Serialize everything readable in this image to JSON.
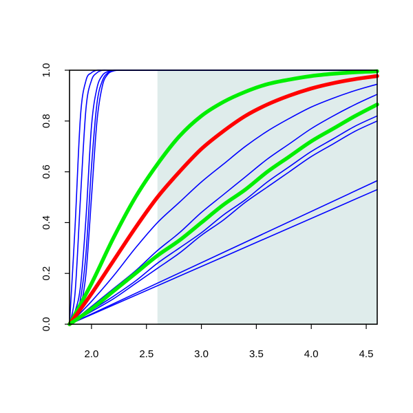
{
  "chart_data": {
    "type": "line",
    "title": "",
    "xlabel": "",
    "ylabel": "",
    "xlim": [
      1.8,
      4.6
    ],
    "ylim": [
      0.0,
      1.0
    ],
    "x_ticks": [
      2.0,
      2.5,
      3.0,
      3.5,
      4.0,
      4.5
    ],
    "x_tick_labels": [
      "2.0",
      "2.5",
      "3.0",
      "3.5",
      "4.0",
      "4.5"
    ],
    "y_ticks": [
      0.0,
      0.2,
      0.4,
      0.6,
      0.8,
      1.0
    ],
    "y_tick_labels": [
      "0.0",
      "0.2",
      "0.4",
      "0.6",
      "0.8",
      "1.0"
    ],
    "grid": false,
    "legend": "none",
    "shaded_region": {
      "x_start": 2.6,
      "x_end": 4.6,
      "color": "#dfeceb"
    },
    "series": [
      {
        "color": "#0000ff",
        "width": "thin",
        "x": [
          1.8,
          1.85,
          1.9,
          1.95,
          2.0,
          2.05,
          2.1,
          2.15,
          2.2,
          2.25,
          2.3,
          2.5,
          3.0,
          4.6
        ],
        "values": [
          0.0,
          0.38,
          0.82,
          0.96,
          0.99,
          1.0,
          1.0,
          1.0,
          1.0,
          1.0,
          1.0,
          1.0,
          1.0,
          1.0
        ]
      },
      {
        "color": "#0000ff",
        "width": "thin",
        "x": [
          1.8,
          1.85,
          1.9,
          1.95,
          2.0,
          2.05,
          2.1,
          2.15,
          2.2,
          2.25,
          2.3,
          2.5,
          3.0,
          4.6
        ],
        "values": [
          0.0,
          0.12,
          0.5,
          0.85,
          0.96,
          0.99,
          1.0,
          1.0,
          1.0,
          1.0,
          1.0,
          1.0,
          1.0,
          1.0
        ]
      },
      {
        "color": "#0000ff",
        "width": "thin",
        "x": [
          1.8,
          1.85,
          1.9,
          1.95,
          2.0,
          2.05,
          2.1,
          2.15,
          2.2,
          2.25,
          2.3,
          2.5,
          3.0,
          4.6
        ],
        "values": [
          0.0,
          0.05,
          0.15,
          0.42,
          0.78,
          0.93,
          0.98,
          0.995,
          1.0,
          1.0,
          1.0,
          1.0,
          1.0,
          1.0
        ]
      },
      {
        "color": "#0000ff",
        "width": "thin",
        "x": [
          1.8,
          1.85,
          1.9,
          1.95,
          2.0,
          2.05,
          2.1,
          2.15,
          2.2,
          2.25,
          2.3,
          2.5,
          3.0,
          4.6
        ],
        "values": [
          0.0,
          0.03,
          0.1,
          0.28,
          0.62,
          0.87,
          0.96,
          0.99,
          1.0,
          1.0,
          1.0,
          1.0,
          1.0,
          1.0
        ]
      },
      {
        "color": "#0000ff",
        "width": "thin",
        "x": [
          1.8,
          1.85,
          1.9,
          1.95,
          2.0,
          2.05,
          2.1,
          2.15,
          2.2,
          2.25,
          2.3,
          2.5,
          3.0,
          4.6
        ],
        "values": [
          0.0,
          0.02,
          0.07,
          0.2,
          0.5,
          0.8,
          0.94,
          0.985,
          0.997,
          1.0,
          1.0,
          1.0,
          1.0,
          1.0
        ]
      },
      {
        "color": "#00ee00",
        "width": "thick",
        "x": [
          1.8,
          2.0,
          2.2,
          2.4,
          2.6,
          2.8,
          3.0,
          3.2,
          3.4,
          3.6,
          3.8,
          4.0,
          4.2,
          4.4,
          4.6
        ],
        "values": [
          0.0,
          0.16,
          0.34,
          0.5,
          0.63,
          0.74,
          0.82,
          0.875,
          0.915,
          0.945,
          0.963,
          0.977,
          0.986,
          0.992,
          0.996
        ]
      },
      {
        "color": "#ff0000",
        "width": "thick",
        "x": [
          1.8,
          2.0,
          2.2,
          2.4,
          2.6,
          2.8,
          3.0,
          3.2,
          3.4,
          3.6,
          3.8,
          4.0,
          4.2,
          4.4,
          4.6
        ],
        "values": [
          0.0,
          0.12,
          0.25,
          0.38,
          0.5,
          0.6,
          0.69,
          0.76,
          0.82,
          0.865,
          0.9,
          0.928,
          0.949,
          0.965,
          0.977
        ]
      },
      {
        "color": "#0000ff",
        "width": "thin",
        "x": [
          1.8,
          2.0,
          2.2,
          2.4,
          2.6,
          2.8,
          3.0,
          3.2,
          3.4,
          3.6,
          3.8,
          4.0,
          4.2,
          4.4,
          4.6
        ],
        "values": [
          0.0,
          0.09,
          0.19,
          0.3,
          0.4,
          0.48,
          0.56,
          0.63,
          0.7,
          0.76,
          0.81,
          0.855,
          0.89,
          0.92,
          0.945
        ]
      },
      {
        "color": "#0000ff",
        "width": "thin",
        "x": [
          1.8,
          2.0,
          2.2,
          2.4,
          2.6,
          2.8,
          3.0,
          3.2,
          3.4,
          3.6,
          3.8,
          4.0,
          4.2,
          4.4,
          4.6
        ],
        "values": [
          0.0,
          0.07,
          0.14,
          0.21,
          0.29,
          0.36,
          0.44,
          0.51,
          0.58,
          0.65,
          0.71,
          0.77,
          0.82,
          0.865,
          0.905
        ]
      },
      {
        "color": "#00ee00",
        "width": "thick",
        "x": [
          1.8,
          2.0,
          2.2,
          2.4,
          2.6,
          2.8,
          3.0,
          3.2,
          3.4,
          3.6,
          3.8,
          4.0,
          4.2,
          4.4,
          4.6
        ],
        "values": [
          0.0,
          0.06,
          0.13,
          0.2,
          0.27,
          0.33,
          0.4,
          0.47,
          0.53,
          0.6,
          0.66,
          0.72,
          0.77,
          0.82,
          0.865
        ]
      },
      {
        "color": "#0000ff",
        "width": "thin",
        "x": [
          1.8,
          2.0,
          2.2,
          2.4,
          2.6,
          2.8,
          3.0,
          3.2,
          3.4,
          3.6,
          3.8,
          4.0,
          4.2,
          4.4,
          4.6
        ],
        "values": [
          0.0,
          0.055,
          0.11,
          0.17,
          0.24,
          0.3,
          0.36,
          0.43,
          0.49,
          0.56,
          0.62,
          0.68,
          0.73,
          0.78,
          0.82
        ]
      },
      {
        "color": "#0000ff",
        "width": "thin",
        "x": [
          1.8,
          2.0,
          2.2,
          2.4,
          2.6,
          2.8,
          3.0,
          3.2,
          3.4,
          3.6,
          3.8,
          4.0,
          4.2,
          4.4,
          4.6
        ],
        "values": [
          0.0,
          0.05,
          0.1,
          0.16,
          0.22,
          0.28,
          0.35,
          0.41,
          0.48,
          0.54,
          0.6,
          0.66,
          0.71,
          0.76,
          0.8
        ]
      },
      {
        "color": "#0000ff",
        "width": "thin",
        "x": [
          1.8,
          4.6
        ],
        "values": [
          0.0,
          0.565
        ]
      },
      {
        "color": "#0000ff",
        "width": "thin",
        "x": [
          1.8,
          4.6
        ],
        "values": [
          0.0,
          0.53
        ]
      }
    ]
  }
}
